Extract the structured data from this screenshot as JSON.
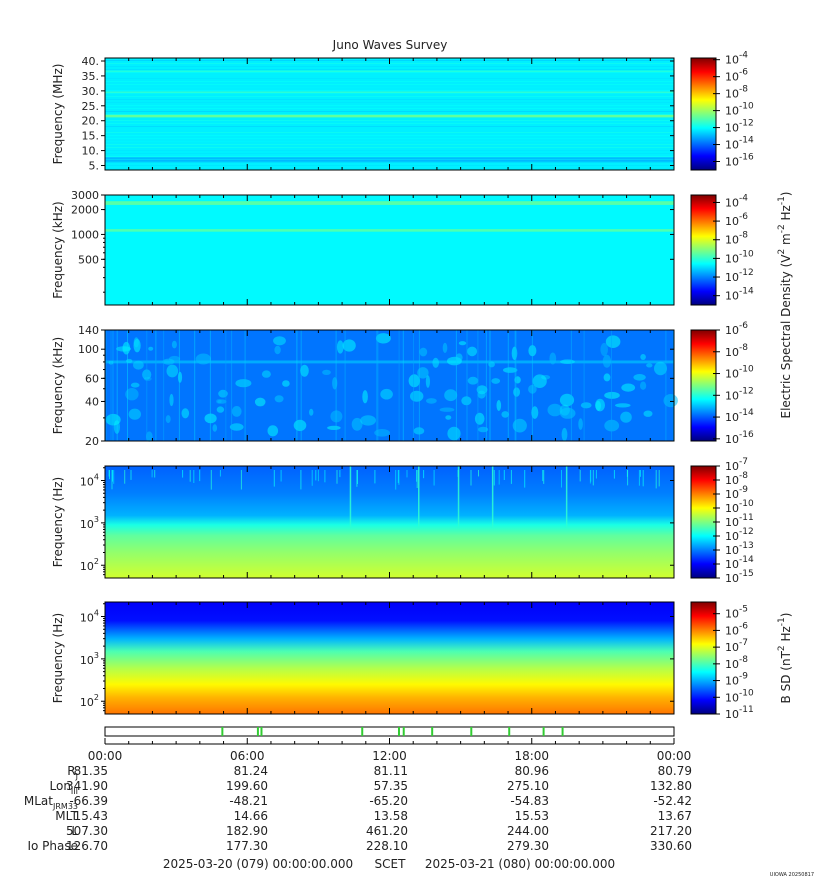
{
  "title": "Juno Waves Survey",
  "watermark": "UIOWA 20250817",
  "colors": {
    "jet": [
      "#00007f",
      "#0000ff",
      "#007fff",
      "#00ffff",
      "#7fff7f",
      "#ffff00",
      "#ff7f00",
      "#ff0000",
      "#7f0000"
    ]
  },
  "chart_data": [
    {
      "type": "heatmap",
      "name": "panel-1",
      "ylabel": "Frequency (MHz)",
      "yscale": "linear",
      "ylim": [
        3.5,
        41
      ],
      "yticks": [
        "40.",
        "35.",
        "30.",
        "25.",
        "20.",
        "15.",
        "10.",
        "5."
      ],
      "ytick_values": [
        40,
        35,
        30,
        25,
        20,
        15,
        10,
        5
      ],
      "colorbar": {
        "ticks": [
          {
            "base": "10",
            "exp": "-4",
            "log": -4
          },
          {
            "base": "10",
            "exp": "-6",
            "log": -6
          },
          {
            "base": "10",
            "exp": "-8",
            "log": -8
          },
          {
            "base": "10",
            "exp": "-10",
            "log": -10
          },
          {
            "base": "10",
            "exp": "-12",
            "log": -12
          },
          {
            "base": "10",
            "exp": "-14",
            "log": -14
          },
          {
            "base": "10",
            "exp": "-16",
            "log": -16
          }
        ],
        "range": [
          -17,
          -3.8
        ]
      },
      "background_level": 0.36,
      "bands": [
        {
          "y": 21.5,
          "width": 1.2,
          "level": 0.48
        },
        {
          "y": 29.5,
          "width": 0.6,
          "level": 0.42
        },
        {
          "y": 36.5,
          "width": 0.6,
          "level": 0.41
        },
        {
          "y": 7,
          "width": 1.5,
          "level": 0.3
        }
      ]
    },
    {
      "type": "heatmap",
      "name": "panel-2",
      "ylabel": "Frequency (kHz)",
      "yscale": "log",
      "ylim": [
        140,
        3000
      ],
      "yticks": [
        "3000",
        "2000",
        "1000",
        "500"
      ],
      "ytick_values": [
        3000,
        2000,
        1000,
        500
      ],
      "colorbar": {
        "ticks": [
          {
            "base": "10",
            "exp": "-4",
            "log": -4
          },
          {
            "base": "10",
            "exp": "-6",
            "log": -6
          },
          {
            "base": "10",
            "exp": "-8",
            "log": -8
          },
          {
            "base": "10",
            "exp": "-10",
            "log": -10
          },
          {
            "base": "10",
            "exp": "-12",
            "log": -12
          },
          {
            "base": "10",
            "exp": "-14",
            "log": -14
          }
        ],
        "range": [
          -15,
          -3.2
        ]
      },
      "background_level": 0.37,
      "bands": [
        {
          "y": 2400,
          "width": 250,
          "level": 0.47
        },
        {
          "y": 1120,
          "width": 80,
          "level": 0.46
        }
      ]
    },
    {
      "type": "heatmap",
      "name": "panel-3",
      "ylabel": "Frequency (kHz)",
      "yscale": "log",
      "ylim": [
        20,
        140
      ],
      "yticks": [
        "140",
        "100",
        "60",
        "40",
        "20"
      ],
      "ytick_values": [
        140,
        100,
        60,
        40,
        20
      ],
      "colorbar": {
        "ticks": [
          {
            "base": "10",
            "exp": "-6",
            "log": -6
          },
          {
            "base": "10",
            "exp": "-8",
            "log": -8
          },
          {
            "base": "10",
            "exp": "-10",
            "log": -10
          },
          {
            "base": "10",
            "exp": "-12",
            "log": -12
          },
          {
            "base": "10",
            "exp": "-14",
            "log": -14
          },
          {
            "base": "10",
            "exp": "-16",
            "log": -16
          }
        ],
        "range": [
          -16.2,
          -6
        ]
      },
      "background_level": 0.24,
      "bands": [
        {
          "y": 80,
          "width": 4,
          "level": 0.3
        }
      ]
    },
    {
      "type": "heatmap",
      "name": "panel-4",
      "ylabel": "Frequency (Hz)",
      "yscale": "log",
      "ylim": [
        50,
        22000
      ],
      "yticks": [
        {
          "base": "10",
          "exp": "4"
        },
        {
          "base": "10",
          "exp": "3"
        },
        {
          "base": "10",
          "exp": "2"
        }
      ],
      "ytick_values": [
        10000,
        1000,
        100
      ],
      "colorbar": {
        "ticks": [
          {
            "base": "10",
            "exp": "-7",
            "log": -7
          },
          {
            "base": "10",
            "exp": "-8",
            "log": -8
          },
          {
            "base": "10",
            "exp": "-9",
            "log": -9
          },
          {
            "base": "10",
            "exp": "-10",
            "log": -10
          },
          {
            "base": "10",
            "exp": "-11",
            "log": -11
          },
          {
            "base": "10",
            "exp": "-12",
            "log": -12
          },
          {
            "base": "10",
            "exp": "-13",
            "log": -13
          },
          {
            "base": "10",
            "exp": "-14",
            "log": -14
          },
          {
            "base": "10",
            "exp": "-15",
            "log": -15
          }
        ],
        "range": [
          -15,
          -7
        ]
      },
      "gradient": [
        {
          "freq": 22000,
          "level": 0.22
        },
        {
          "freq": 5000,
          "level": 0.25
        },
        {
          "freq": 1500,
          "level": 0.3
        },
        {
          "freq": 900,
          "level": 0.4
        },
        {
          "freq": 500,
          "level": 0.47
        },
        {
          "freq": 200,
          "level": 0.52
        },
        {
          "freq": 50,
          "level": 0.58
        }
      ]
    },
    {
      "type": "heatmap",
      "name": "panel-5",
      "ylabel": "Frequency (Hz)",
      "yscale": "log",
      "ylim": [
        50,
        22000
      ],
      "yticks": [
        {
          "base": "10",
          "exp": "4"
        },
        {
          "base": "10",
          "exp": "3"
        },
        {
          "base": "10",
          "exp": "2"
        }
      ],
      "ytick_values": [
        10000,
        1000,
        100
      ],
      "colorbar": {
        "ticks": [
          {
            "base": "10",
            "exp": "-5",
            "log": -5
          },
          {
            "base": "10",
            "exp": "-6",
            "log": -6
          },
          {
            "base": "10",
            "exp": "-7",
            "log": -7
          },
          {
            "base": "10",
            "exp": "-8",
            "log": -8
          },
          {
            "base": "10",
            "exp": "-9",
            "log": -9
          },
          {
            "base": "10",
            "exp": "-10",
            "log": -10
          },
          {
            "base": "10",
            "exp": "-11",
            "log": -11
          }
        ],
        "range": [
          -11,
          -4.3
        ]
      },
      "gradient": [
        {
          "freq": 22000,
          "level": 0.12
        },
        {
          "freq": 8000,
          "level": 0.14
        },
        {
          "freq": 3000,
          "level": 0.3
        },
        {
          "freq": 1500,
          "level": 0.45
        },
        {
          "freq": 600,
          "level": 0.55
        },
        {
          "freq": 250,
          "level": 0.63
        },
        {
          "freq": 120,
          "level": 0.7
        },
        {
          "freq": 50,
          "level": 0.76
        }
      ]
    }
  ],
  "colorbar_labels": {
    "electric": {
      "text": "Electric Spectral Density (V",
      "sup1": "2",
      "mid": " m",
      "sup2": "-2",
      "mid2": " Hz",
      "sup3": "-1",
      "end": ")"
    },
    "magnetic": {
      "text": "B SD (nT",
      "sup1": "2",
      "mid": " Hz",
      "sup2": "-1",
      "end": ")"
    }
  },
  "event_markers_hours": [
    4.95,
    6.45,
    6.6,
    10.85,
    12.4,
    12.6,
    13.8,
    15.45,
    17.05,
    18.5,
    19.3
  ],
  "time_axis": {
    "labels": [
      "00:00",
      "06:00",
      "12:00",
      "18:00",
      "00:00"
    ],
    "start_hour": 0,
    "end_hour": 24
  },
  "ephemeris": {
    "rows": [
      {
        "label": "R",
        "sub": "J",
        "values": [
          "81.35",
          "81.24",
          "81.11",
          "80.96",
          "80.79"
        ]
      },
      {
        "label": "Lon",
        "sub": "III",
        "values": [
          "341.90",
          "199.60",
          "57.35",
          "275.10",
          "132.80"
        ]
      },
      {
        "label": "MLat",
        "sub": "JRM33",
        "values": [
          "-66.39",
          "-48.21",
          "-65.20",
          "-54.83",
          "-52.42"
        ]
      },
      {
        "label": "MLT",
        "sub": "",
        "values": [
          "15.43",
          "14.66",
          "13.58",
          "15.53",
          "13.67"
        ]
      },
      {
        "label": "L",
        "sub": "",
        "values": [
          "507.30",
          "182.90",
          "461.20",
          "244.00",
          "217.20"
        ]
      },
      {
        "label": "Io Phase",
        "sub": "",
        "values": [
          "126.70",
          "177.30",
          "228.10",
          "279.30",
          "330.60"
        ]
      }
    ]
  },
  "footer": {
    "start": "2025-03-20 (079) 00:00:00.000",
    "scet": "SCET",
    "end": "2025-03-21 (080) 00:00:00.000"
  }
}
